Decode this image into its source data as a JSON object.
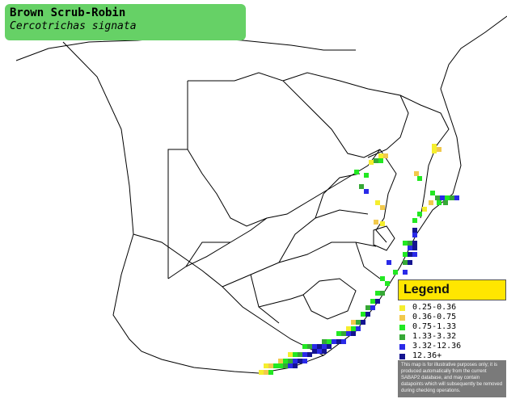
{
  "title": {
    "common_name": "Brown Scrub-Robin",
    "scientific_name": "Cercotrichas signata"
  },
  "legend": {
    "title": "Legend",
    "items": [
      {
        "label": "0.25-0.36",
        "color": "#f5ee2e"
      },
      {
        "label": "0.36-0.75",
        "color": "#f2c94c"
      },
      {
        "label": "0.75-1.33",
        "color": "#22e822"
      },
      {
        "label": "1.33-3.32",
        "color": "#36a836"
      },
      {
        "label": "3.32-12.36",
        "color": "#2a2ae8"
      },
      {
        "label": "12.36+",
        "color": "#141490"
      }
    ],
    "note": "This map is for illustrative purposes only; it is produced automatically from the current SABAP2 database, and may contain datapoints which will subsequently be removed during checking operations."
  },
  "map": {
    "colors": {
      "border": "#000000",
      "background": "#ffffff"
    }
  }
}
